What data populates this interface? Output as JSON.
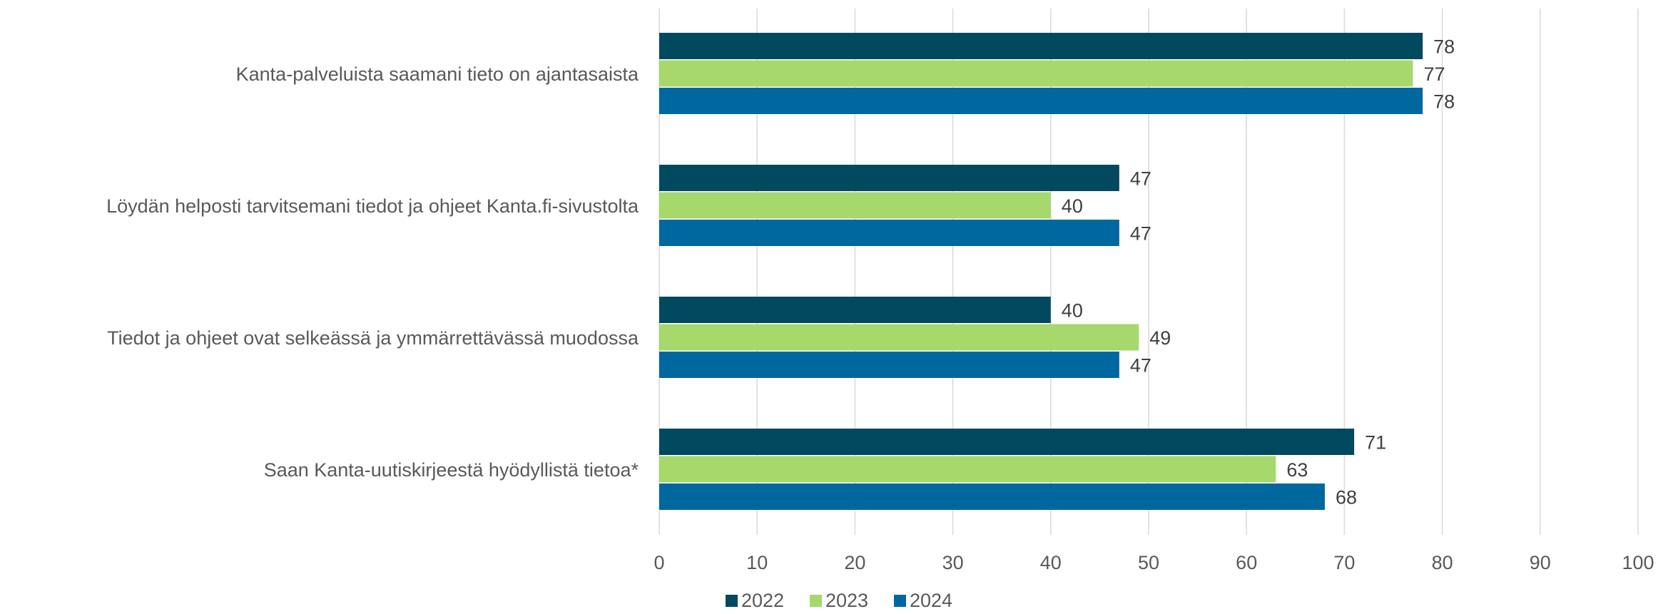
{
  "chart_data": {
    "type": "bar",
    "orientation": "horizontal",
    "categories": [
      "Kanta-palveluista saamani tieto on ajantasaista",
      "Löydän helposti tarvitsemani tiedot ja ohjeet Kanta.fi-sivustolta",
      "Tiedot ja ohjeet ovat selkeässä ja ymmärrettävässä muodossa",
      "Saan Kanta-uutiskirjeestä hyödyllistä tietoa*"
    ],
    "series": [
      {
        "name": "2022",
        "color": "#00495f",
        "values": [
          78,
          47,
          40,
          71
        ]
      },
      {
        "name": "2023",
        "color": "#a6d86b",
        "values": [
          77,
          40,
          49,
          63
        ]
      },
      {
        "name": "2024",
        "color": "#00679f",
        "values": [
          78,
          47,
          47,
          68
        ]
      }
    ],
    "xlim": [
      0,
      100
    ],
    "xticks": [
      "0",
      "10",
      "20",
      "30",
      "40",
      "50",
      "60",
      "70",
      "80",
      "90",
      "100"
    ],
    "grid": true,
    "legend_position": "bottom",
    "title": "",
    "xlabel": "",
    "ylabel": ""
  }
}
